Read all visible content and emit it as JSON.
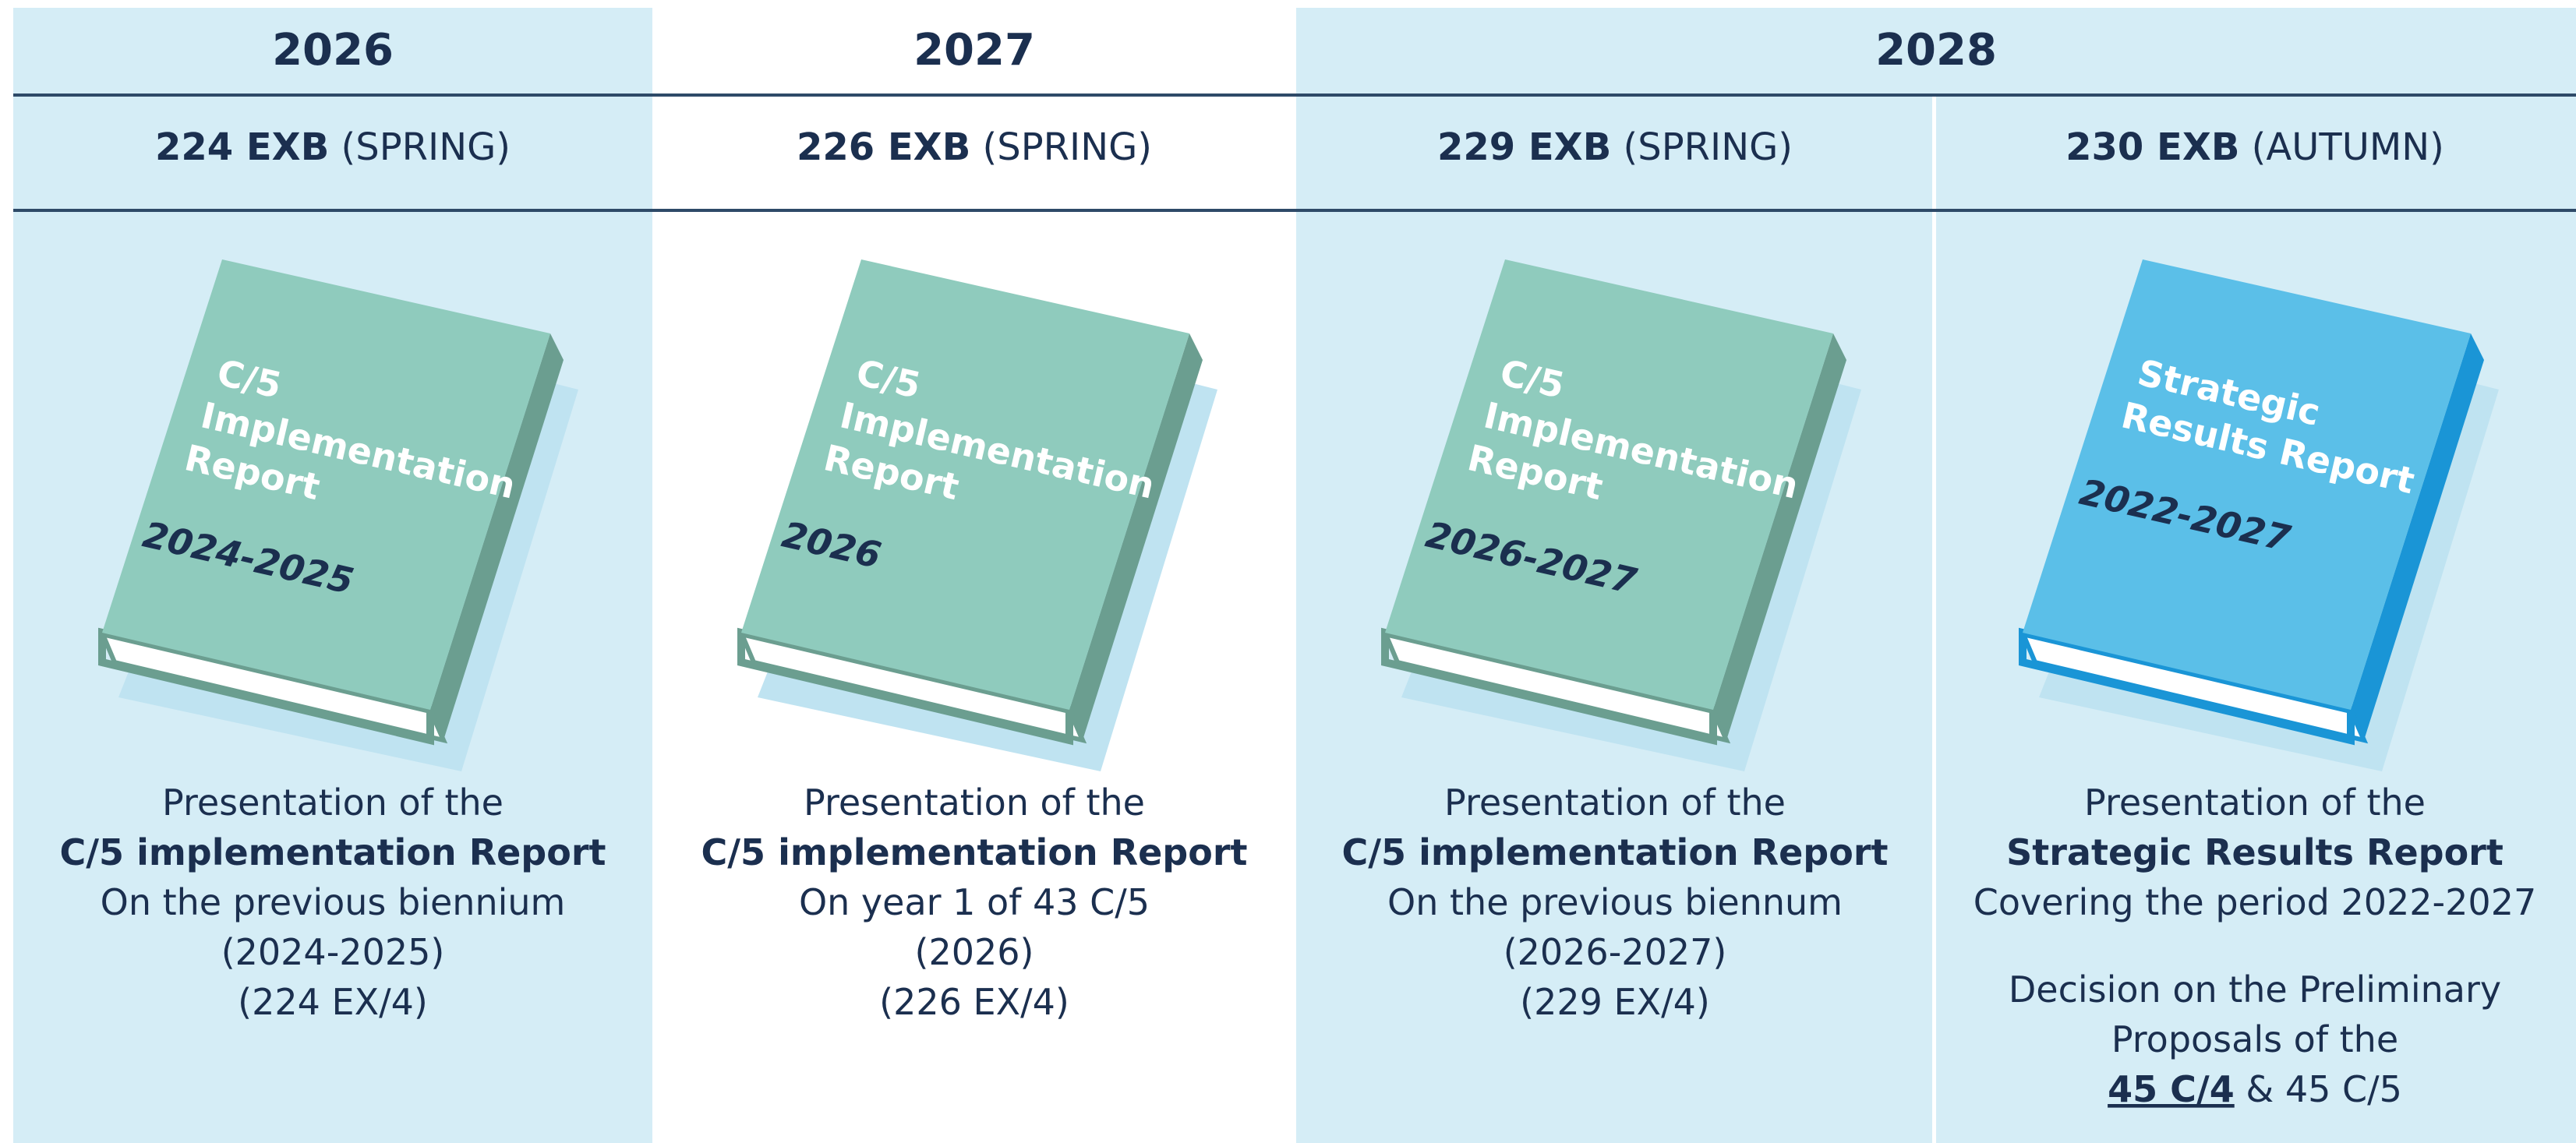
{
  "years": [
    {
      "label": "2026"
    },
    {
      "label": "2027"
    },
    {
      "label": "2028"
    }
  ],
  "sessions": [
    {
      "code": "224 EXB",
      "season": "(SPRING)",
      "book": {
        "title": [
          "C/5",
          "Implementation",
          "Report"
        ],
        "period": "2024-2025",
        "color": "green"
      },
      "description": [
        [
          {
            "text": "Presentation of the"
          }
        ],
        [
          {
            "text": "C/5 implementation Report",
            "bold": true
          }
        ],
        [
          {
            "text": "On the previous biennium"
          }
        ],
        [
          {
            "text": "(2024-2025)"
          }
        ],
        [
          {
            "text": "(224 EX/4)"
          }
        ]
      ]
    },
    {
      "code": "226 EXB",
      "season": "(SPRING)",
      "book": {
        "title": [
          "C/5",
          "Implementation",
          "Report"
        ],
        "period": "2026",
        "color": "green"
      },
      "description": [
        [
          {
            "text": "Presentation of the"
          }
        ],
        [
          {
            "text": "C/5 implementation Report",
            "bold": true
          }
        ],
        [
          {
            "text": "On year 1 of 43 C/5"
          }
        ],
        [
          {
            "text": "(2026)"
          }
        ],
        [
          {
            "text": "(226 EX/4)"
          }
        ]
      ]
    },
    {
      "code": "229 EXB",
      "season": "(SPRING)",
      "book": {
        "title": [
          "C/5",
          "Implementation",
          "Report"
        ],
        "period": "2026-2027",
        "color": "green"
      },
      "description": [
        [
          {
            "text": "Presentation of the"
          }
        ],
        [
          {
            "text": "C/5 implementation Report",
            "bold": true
          }
        ],
        [
          {
            "text": "On the previous biennum"
          }
        ],
        [
          {
            "text": "(2026-2027)"
          }
        ],
        [
          {
            "text": "(229 EX/4)"
          }
        ]
      ]
    },
    {
      "code": "230 EXB",
      "season": "(AUTUMN)",
      "book": {
        "title": [
          "Strategic",
          "Results Report"
        ],
        "period": "2022-2027",
        "color": "blue"
      },
      "description": [
        [
          {
            "text": "Presentation of the"
          }
        ],
        [
          {
            "text": "Strategic Results Report",
            "bold": true
          }
        ],
        [
          {
            "text": "Covering the period 2022-2027"
          }
        ]
      ],
      "decision": [
        [
          {
            "text": "Decision on the Preliminary"
          }
        ],
        [
          {
            "text": "Proposals of the"
          }
        ],
        [
          {
            "text": "45 C/4",
            "bold": true,
            "underline": true
          },
          {
            "text": " & 45 C/5"
          }
        ]
      ]
    }
  ]
}
